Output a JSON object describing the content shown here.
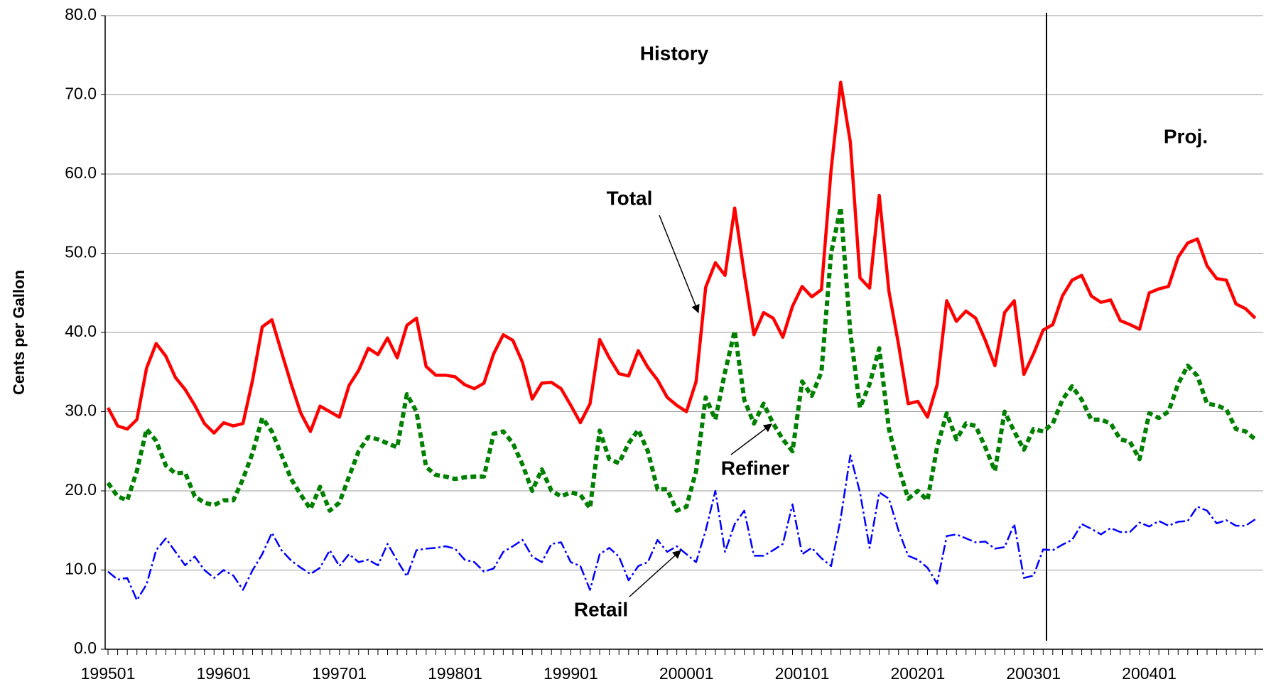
{
  "chart_data": {
    "type": "line",
    "ylabel": "Cents per Gallon",
    "categories": [
      "199501",
      null,
      null,
      null,
      null,
      null,
      null,
      null,
      null,
      null,
      null,
      null,
      "199601",
      null,
      null,
      null,
      null,
      null,
      null,
      null,
      null,
      null,
      null,
      null,
      "199701",
      null,
      null,
      null,
      null,
      null,
      null,
      null,
      null,
      null,
      null,
      null,
      "199801",
      null,
      null,
      null,
      null,
      null,
      null,
      null,
      null,
      null,
      null,
      null,
      "199901",
      null,
      null,
      null,
      null,
      null,
      null,
      null,
      null,
      null,
      null,
      null,
      "200001",
      null,
      null,
      null,
      null,
      null,
      null,
      null,
      null,
      null,
      null,
      null,
      "200101",
      null,
      null,
      null,
      null,
      null,
      null,
      null,
      null,
      null,
      null,
      null,
      "200201",
      null,
      null,
      null,
      null,
      null,
      null,
      null,
      null,
      null,
      null,
      null,
      "200301",
      null,
      null,
      null,
      null,
      null,
      null,
      null,
      null,
      null,
      null,
      null,
      "200401",
      null,
      null,
      null,
      null,
      null,
      null,
      null,
      null,
      null,
      null,
      null
    ],
    "series": [
      {
        "name": "Total",
        "color": "#ff0000",
        "values": [
          30.5,
          28.2,
          27.8,
          29,
          35.5,
          38.6,
          37,
          34.3,
          32.8,
          30.8,
          28.5,
          27.3,
          28.6,
          28.2,
          28.5,
          34,
          40.7,
          41.6,
          37.5,
          33.5,
          29.8,
          27.5,
          30.7,
          30,
          29.3,
          33.3,
          35.2,
          38,
          37.2,
          39.3,
          36.8,
          40.9,
          41.8,
          35.7,
          34.6,
          34.6,
          34.4,
          33.4,
          32.9,
          33.6,
          37.3,
          39.7,
          39,
          36.2,
          31.6,
          33.6,
          33.7,
          32.9,
          30.8,
          28.6,
          31,
          39.1,
          36.8,
          34.8,
          34.5,
          37.7,
          35.6,
          34,
          31.8,
          30.8,
          30,
          33.8,
          45.7,
          48.8,
          47.2,
          55.7,
          47.4,
          39.7,
          42.5,
          41.8,
          39.4,
          43.3,
          45.8,
          44.5,
          45.4,
          60.5,
          71.6,
          64,
          46.9,
          45.6,
          57.3,
          45.2,
          38.5,
          31,
          31.3,
          29.3,
          33.4,
          44,
          41.4,
          42.7,
          41.8,
          39,
          35.8,
          42.5,
          44,
          34.7,
          37.3,
          40.3,
          41,
          44.6,
          46.6,
          47.2,
          44.6,
          43.8,
          44.1,
          41.5,
          41,
          40.4,
          45,
          45.5,
          45.8,
          49.5,
          51.3,
          51.8,
          48.4,
          46.8,
          46.6,
          43.6,
          43,
          41.8
        ]
      },
      {
        "name": "Refiner",
        "color": "#008000",
        "values": [
          21,
          19.3,
          18.8,
          22.5,
          27.8,
          26.3,
          23.2,
          22.2,
          22.3,
          19.3,
          18.5,
          18.2,
          18.8,
          18.8,
          21.5,
          24.8,
          29.2,
          27.5,
          24.5,
          21.5,
          19.5,
          17.7,
          20.5,
          17.5,
          18.5,
          21.8,
          25,
          26.8,
          26.5,
          26,
          25.5,
          32.2,
          30,
          23,
          22,
          21.8,
          21.5,
          21.7,
          21.8,
          21.8,
          27.2,
          27.5,
          26,
          23.3,
          20,
          22.7,
          20,
          19.3,
          19.8,
          19.5,
          17.8,
          27.6,
          24,
          23.5,
          26,
          27.7,
          25,
          20.2,
          20.2,
          17.5,
          18,
          22.5,
          31.8,
          29,
          35,
          40.2,
          31.5,
          28.5,
          31,
          28.5,
          26.5,
          25,
          33.8,
          32,
          35,
          50,
          55.8,
          40,
          30.5,
          33.5,
          38,
          27.8,
          23,
          19,
          20,
          18.8,
          25.5,
          29.8,
          26.5,
          28.5,
          28.2,
          25.5,
          22.5,
          30,
          27.5,
          25.2,
          27.8,
          27.5,
          28.5,
          31.5,
          33.2,
          31.5,
          29,
          29,
          28.5,
          26.5,
          26.2,
          24,
          29.8,
          29.2,
          30,
          33.5,
          35.8,
          34.5,
          31,
          30.8,
          30.3,
          27.8,
          27.5,
          26.5
        ]
      },
      {
        "name": "Retail",
        "color": "#0000ff",
        "values": [
          9.8,
          8.8,
          9,
          6.2,
          8.2,
          12.5,
          14,
          12.3,
          10.6,
          11.7,
          10,
          9,
          10,
          9.3,
          7.5,
          10,
          12,
          14.7,
          12.5,
          11.2,
          10.3,
          9.5,
          10.3,
          12.5,
          10.5,
          12,
          11,
          11.3,
          10.6,
          13.3,
          11.2,
          9.2,
          12.5,
          12.7,
          12.8,
          13,
          12.7,
          11.3,
          11,
          9.8,
          10.2,
          12.3,
          13,
          13.8,
          11.7,
          11,
          13.3,
          13.5,
          11,
          10.5,
          7.5,
          12,
          12.8,
          11.7,
          8.7,
          10.5,
          11,
          13.8,
          12.3,
          13,
          12,
          11,
          15,
          20,
          12.3,
          15.8,
          17.5,
          11.8,
          11.8,
          12.5,
          13.3,
          18.3,
          12,
          12.8,
          11.5,
          10.5,
          16.5,
          24.5,
          19.8,
          12.8,
          19.8,
          19,
          15,
          11.8,
          11.3,
          10.3,
          8.3,
          14.3,
          14.5,
          14,
          13.5,
          13.6,
          12.7,
          12.9,
          15.8,
          9,
          9.3,
          12.6,
          12.5,
          13.2,
          13.8,
          15.8,
          15.2,
          14.5,
          15.3,
          14.8,
          14.8,
          16,
          15.5,
          16.2,
          15.6,
          16.1,
          16.2,
          18,
          17.5,
          15.9,
          16.3,
          15.6,
          15.6,
          16.4
        ]
      }
    ],
    "annotations": [
      "History",
      "Proj."
    ],
    "ylim": [
      0,
      80
    ],
    "yticks": [
      {
        "value": 0,
        "label": "0.0"
      },
      {
        "value": 10,
        "label": "10.0"
      },
      {
        "value": 20,
        "label": "20.0"
      },
      {
        "value": 30,
        "label": "30.0"
      },
      {
        "value": 40,
        "label": "40.0"
      },
      {
        "value": 50,
        "label": "50.0"
      },
      {
        "value": 60,
        "label": "60.0"
      },
      {
        "value": 70,
        "label": "70.0"
      },
      {
        "value": 80,
        "label": "80.0"
      }
    ],
    "grid": true
  }
}
